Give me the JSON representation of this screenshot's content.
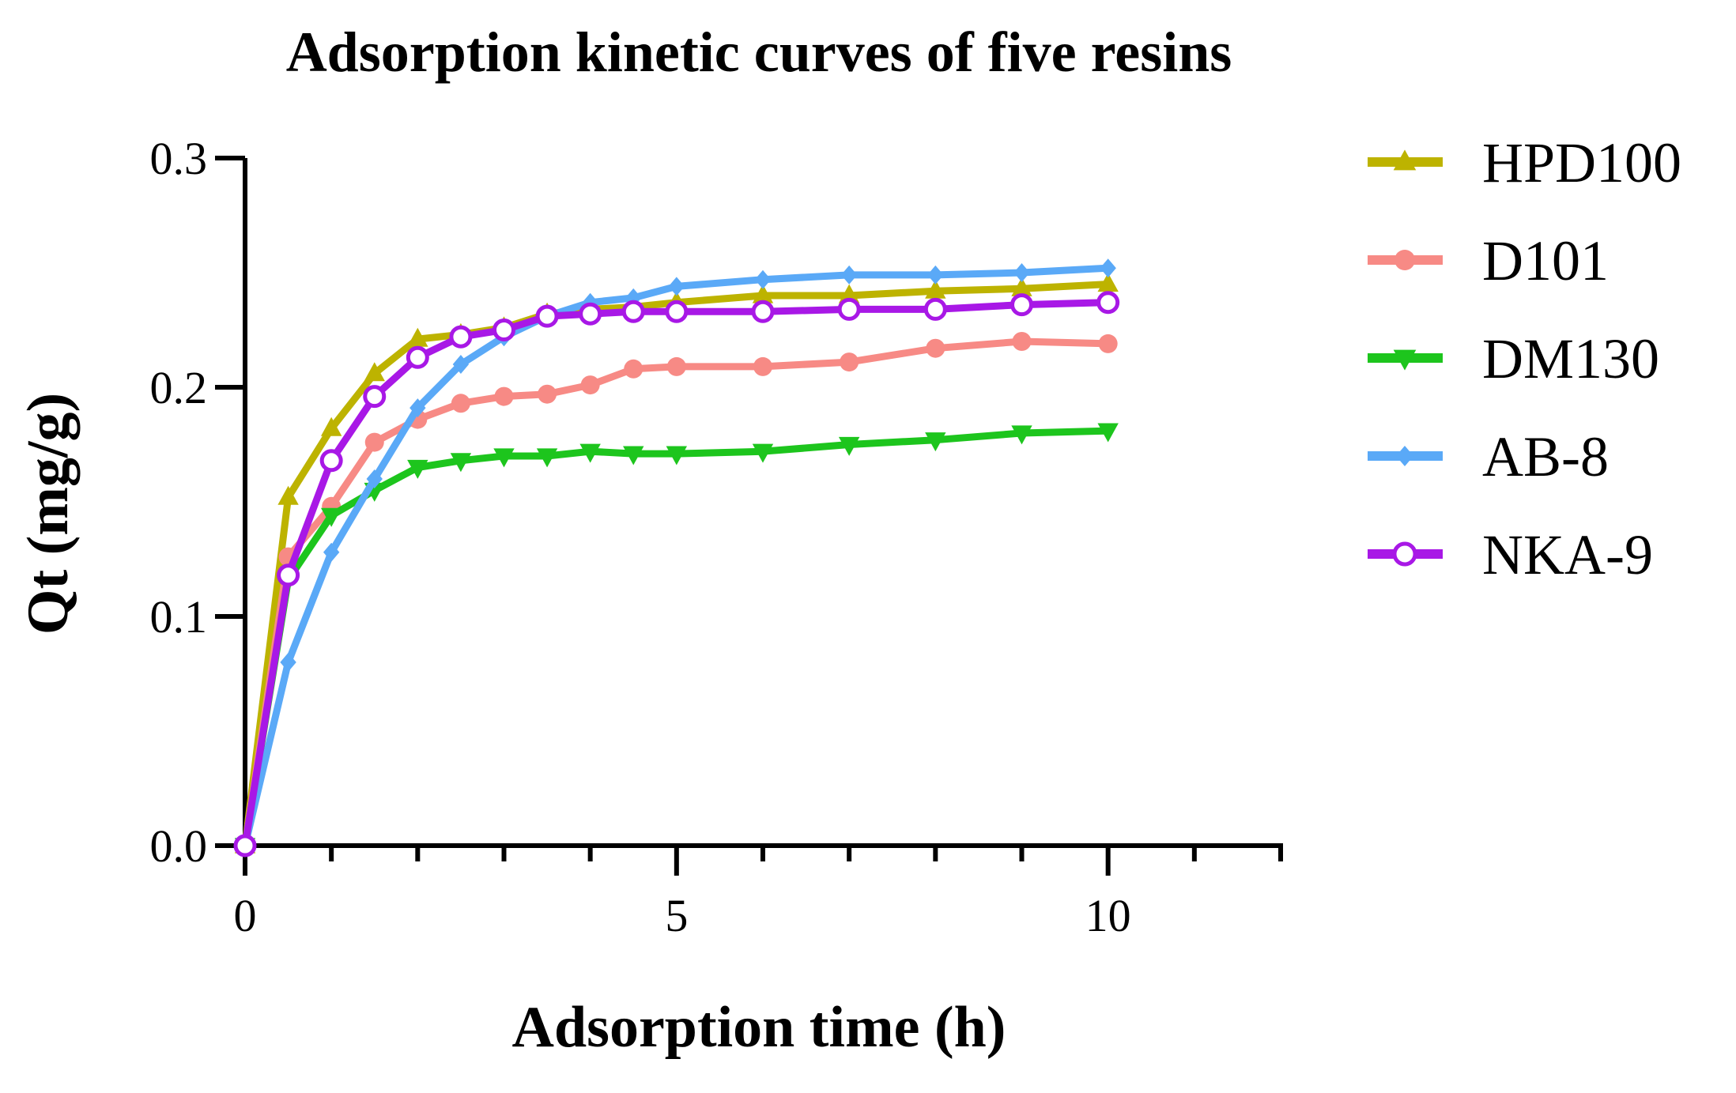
{
  "chart_data": {
    "type": "line",
    "title": "Adsorption kinetic curves of five resins",
    "xlabel": "Adsorption time (h)",
    "ylabel": "Qt (mg/g)",
    "xlim": [
      0,
      12
    ],
    "ylim": [
      0,
      0.3
    ],
    "x_ticks": [
      0,
      5,
      10
    ],
    "x_tick_labels": [
      "0",
      "5",
      "10"
    ],
    "x_minor_ticks": [
      1,
      2,
      3,
      4,
      6,
      7,
      8,
      9,
      11,
      12
    ],
    "y_ticks": [
      0,
      0.1,
      0.2,
      0.3
    ],
    "y_tick_labels": [
      "0.0",
      "0.1",
      "0.2",
      "0.3"
    ],
    "legend_position": "right",
    "grid": false,
    "series": [
      {
        "name": "HPD100",
        "color": "#bdb300",
        "marker": "triangle-up",
        "x": [
          0,
          0.5,
          1,
          1.5,
          2,
          2.5,
          3,
          3.5,
          4,
          4.5,
          5,
          6,
          7,
          8,
          9,
          10
        ],
        "y": [
          0,
          0.152,
          0.182,
          0.206,
          0.221,
          0.223,
          0.226,
          0.232,
          0.234,
          0.235,
          0.237,
          0.24,
          0.24,
          0.242,
          0.243,
          0.245
        ]
      },
      {
        "name": "D101",
        "color": "#f78a85",
        "marker": "circle-filled",
        "x": [
          0,
          0.5,
          1,
          1.5,
          2,
          2.5,
          3,
          3.5,
          4,
          4.5,
          5,
          6,
          7,
          8,
          9,
          10
        ],
        "y": [
          0,
          0.126,
          0.148,
          0.176,
          0.186,
          0.193,
          0.196,
          0.197,
          0.201,
          0.208,
          0.209,
          0.209,
          0.211,
          0.217,
          0.22,
          0.219
        ]
      },
      {
        "name": "DM130",
        "color": "#1dc51d",
        "marker": "triangle-down",
        "x": [
          0,
          0.5,
          1,
          1.5,
          2,
          2.5,
          3,
          3.5,
          4,
          4.5,
          5,
          6,
          7,
          8,
          9,
          10
        ],
        "y": [
          0,
          0.116,
          0.144,
          0.155,
          0.165,
          0.168,
          0.17,
          0.17,
          0.172,
          0.171,
          0.171,
          0.172,
          0.175,
          0.177,
          0.18,
          0.181
        ]
      },
      {
        "name": "AB-8",
        "color": "#5aa9f7",
        "marker": "diamond",
        "x": [
          0,
          0.5,
          1,
          1.5,
          2,
          2.5,
          3,
          3.5,
          4,
          4.5,
          5,
          6,
          7,
          8,
          9,
          10
        ],
        "y": [
          0,
          0.08,
          0.128,
          0.16,
          0.191,
          0.21,
          0.222,
          0.231,
          0.237,
          0.239,
          0.244,
          0.247,
          0.249,
          0.249,
          0.25,
          0.252
        ]
      },
      {
        "name": "NKA-9",
        "color": "#a818e6",
        "marker": "circle-open",
        "x": [
          0,
          0.5,
          1,
          1.5,
          2,
          2.5,
          3,
          3.5,
          4,
          4.5,
          5,
          6,
          7,
          8,
          9,
          10
        ],
        "y": [
          0,
          0.118,
          0.168,
          0.196,
          0.213,
          0.222,
          0.225,
          0.231,
          0.232,
          0.233,
          0.233,
          0.233,
          0.234,
          0.234,
          0.236,
          0.237
        ]
      }
    ]
  }
}
